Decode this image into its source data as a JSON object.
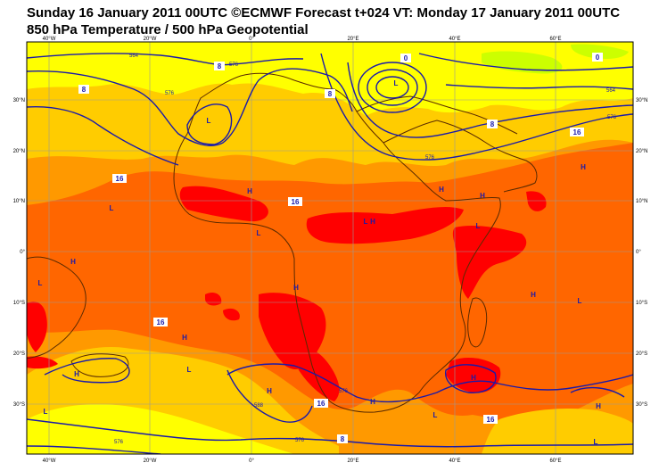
{
  "title_line1": "Sunday 16 January 2011 00UTC ©ECMWF Forecast t+024 VT: Monday 17 January 2011 00UTC",
  "title_line2": "850 hPa Temperature / 500 hPa Geopotential",
  "colors": {
    "band_0_8": "#ffff00",
    "band_8_16": "#ffcc00",
    "band_16_24": "#ff9900",
    "band_24_32": "#ff6600",
    "band_32_plus": "#ff0000",
    "band_cold": "#ccff00",
    "geopotential_line": "#1a1aaa",
    "coastline": "#5a2a00",
    "grid": "#999999"
  },
  "axes": {
    "lon_labels": [
      "40°W",
      "20°W",
      "0°",
      "20°E",
      "40°E",
      "60°E"
    ],
    "lat_labels": [
      "30°N",
      "20°N",
      "10°N",
      "0°",
      "10°S",
      "20°S",
      "30°S"
    ]
  },
  "isotherm_labels": [
    "8",
    "8",
    "8",
    "0",
    "0",
    "8",
    "16",
    "16",
    "16",
    "16",
    "16",
    "8",
    "16"
  ],
  "geopotential_labels": [
    "564",
    "576",
    "576",
    "576",
    "564",
    "576",
    "576",
    "588",
    "576",
    "576"
  ],
  "pressure_marks": [
    "L",
    "L",
    "L",
    "H",
    "H",
    "L",
    "L",
    "H",
    "H",
    "H",
    "L",
    "H",
    "L",
    "H",
    "L",
    "H",
    "H",
    "H",
    "L",
    "H",
    "H",
    "L",
    "H",
    "H",
    "L",
    "L"
  ]
}
